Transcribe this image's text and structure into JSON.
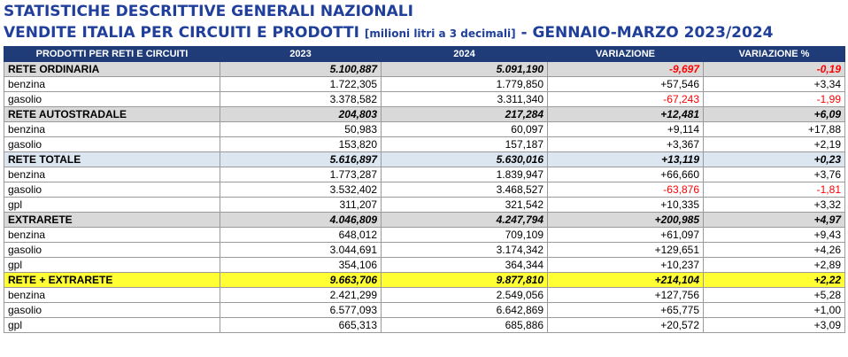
{
  "title_line1": "STATISTICHE DESCRITTIVE GENERALI NAZIONALI",
  "title_line2_main": "VENDITE ITALIA PER CIRCUITI E PRODOTTI",
  "title_line2_unit": "[milioni litri a 3 decimali]",
  "title_line2_period": "- GENNAIO-MARZO 2023/2024",
  "headers": [
    "PRODOTTI PER RETI E CIRCUITI",
    "2023",
    "2024",
    "VARIAZIONE",
    "VARIAZIONE %"
  ],
  "rows": [
    {
      "label": "RETE ORDINARIA",
      "v2023": "5.100,887",
      "v2024": "5.091,190",
      "var": "-9,697",
      "varp": "-0,19",
      "style": "gray"
    },
    {
      "label": "benzina",
      "v2023": "1.722,305",
      "v2024": "1.779,850",
      "var": "+57,546",
      "varp": "+3,34",
      "style": ""
    },
    {
      "label": "gasolio",
      "v2023": "3.378,582",
      "v2024": "3.311,340",
      "var": "-67,243",
      "varp": "-1,99",
      "style": ""
    },
    {
      "label": "RETE AUTOSTRADALE",
      "v2023": "204,803",
      "v2024": "217,284",
      "var": "+12,481",
      "varp": "+6,09",
      "style": "gray"
    },
    {
      "label": "benzina",
      "v2023": "50,983",
      "v2024": "60,097",
      "var": "+9,114",
      "varp": "+17,88",
      "style": ""
    },
    {
      "label": "gasolio",
      "v2023": "153,820",
      "v2024": "157,187",
      "var": "+3,367",
      "varp": "+2,19",
      "style": ""
    },
    {
      "label": "RETE TOTALE",
      "v2023": "5.616,897",
      "v2024": "5.630,016",
      "var": "+13,119",
      "varp": "+0,23",
      "style": "blue"
    },
    {
      "label": "benzina",
      "v2023": "1.773,287",
      "v2024": "1.839,947",
      "var": "+66,660",
      "varp": "+3,76",
      "style": ""
    },
    {
      "label": "gasolio",
      "v2023": "3.532,402",
      "v2024": "3.468,527",
      "var": "-63,876",
      "varp": "-1,81",
      "style": ""
    },
    {
      "label": "gpl",
      "v2023": "311,207",
      "v2024": "321,542",
      "var": "+10,335",
      "varp": "+3,32",
      "style": ""
    },
    {
      "label": "EXTRARETE",
      "v2023": "4.046,809",
      "v2024": "4.247,794",
      "var": "+200,985",
      "varp": "+4,97",
      "style": "gray"
    },
    {
      "label": "benzina",
      "v2023": "648,012",
      "v2024": "709,109",
      "var": "+61,097",
      "varp": "+9,43",
      "style": ""
    },
    {
      "label": "gasolio",
      "v2023": "3.044,691",
      "v2024": "3.174,342",
      "var": "+129,651",
      "varp": "+4,26",
      "style": ""
    },
    {
      "label": "gpl",
      "v2023": "354,106",
      "v2024": "364,344",
      "var": "+10,237",
      "varp": "+2,89",
      "style": ""
    },
    {
      "label": "RETE + EXTRARETE",
      "v2023": "9.663,706",
      "v2024": "9.877,810",
      "var": "+214,104",
      "varp": "+2,22",
      "style": "yellow"
    },
    {
      "label": "benzina",
      "v2023": "2.421,299",
      "v2024": "2.549,056",
      "var": "+127,756",
      "varp": "+5,28",
      "style": ""
    },
    {
      "label": "gasolio",
      "v2023": "6.577,093",
      "v2024": "6.642,869",
      "var": "+65,775",
      "varp": "+1,00",
      "style": ""
    },
    {
      "label": "gpl",
      "v2023": "665,313",
      "v2024": "685,886",
      "var": "+20,572",
      "varp": "+3,09",
      "style": ""
    }
  ],
  "colors": {
    "title": "#1f3f9a",
    "header_bg": "#1f3c78",
    "negative": "#ff0000",
    "group_gray": "#d9d9d9",
    "group_blue": "#dce6f1",
    "group_yellow": "#ffff33"
  }
}
